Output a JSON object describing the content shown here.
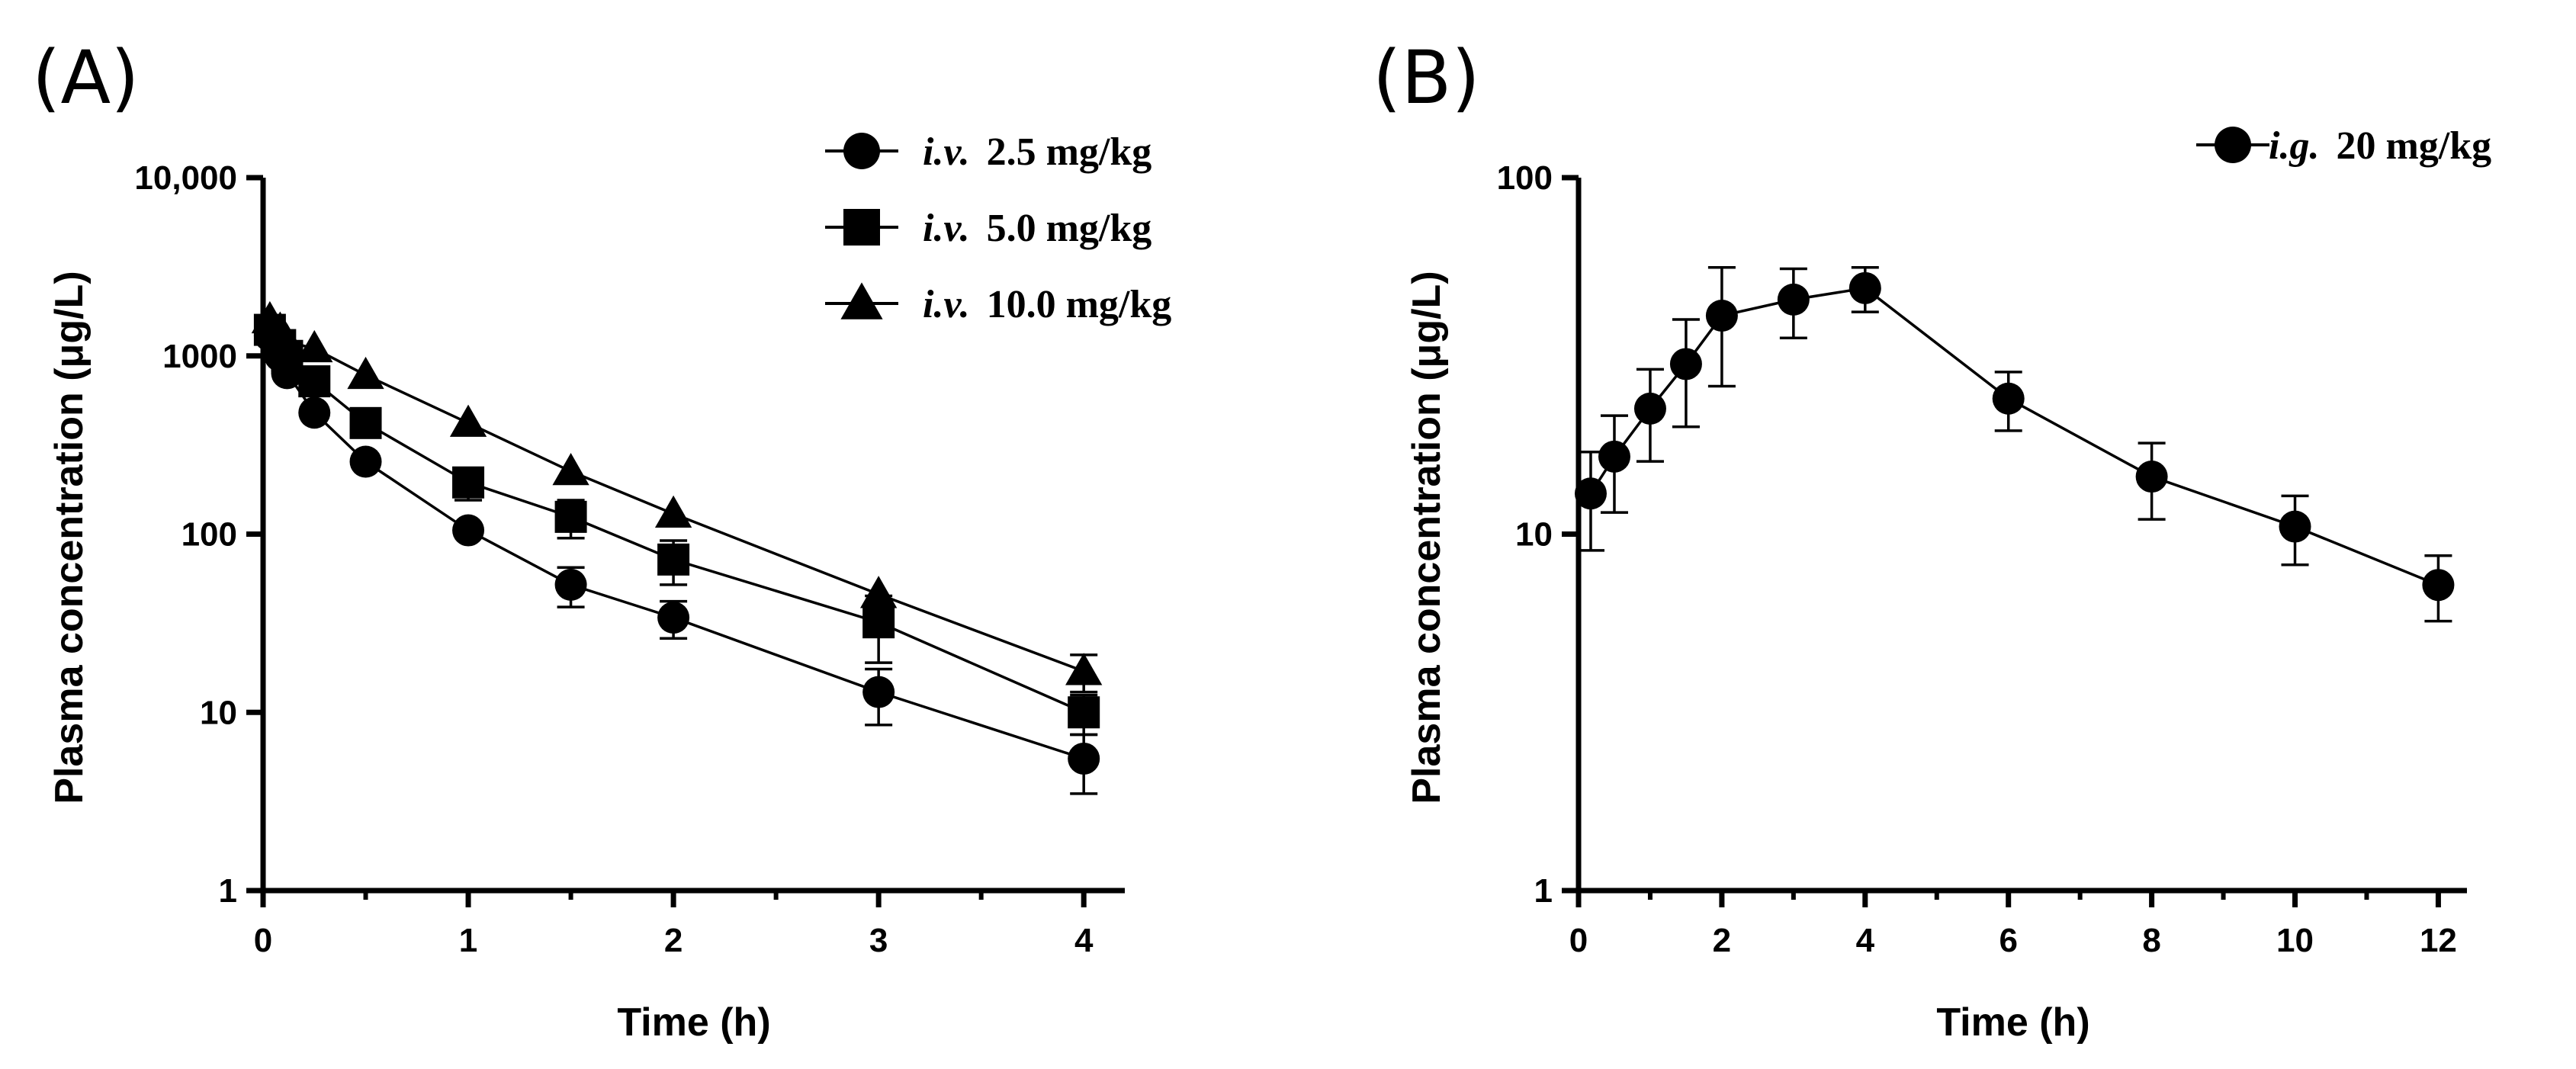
{
  "chart_data": [
    {
      "panel_label": "(A)",
      "type": "line",
      "yscale": "log",
      "xlabel": "Time (h)",
      "ylabel": "Plasma concentration (μg/L)",
      "xlim": [
        0,
        4.2
      ],
      "ylim": [
        1,
        10000
      ],
      "xticks": [
        0,
        1,
        2,
        3,
        4
      ],
      "xtick_labels": [
        "0",
        "1",
        "2",
        "3",
        "4"
      ],
      "yticks": [
        1,
        10,
        100,
        1000,
        10000
      ],
      "ytick_labels": [
        "1",
        "10",
        "100",
        "1000",
        "10,000"
      ],
      "legend_position": "top-right",
      "series": [
        {
          "name": "i.v. 2.5 mg/kg",
          "legend_italic": "i.v.",
          "legend_rest": "2.5  mg/kg",
          "marker": "circle",
          "x": [
            0.033,
            0.083,
            0.117,
            0.25,
            0.5,
            1,
            1.5,
            2,
            3,
            4
          ],
          "y": [
            1300,
            1000,
            800,
            480,
            255,
            105,
            52,
            34,
            13,
            5.5
          ],
          "err": [
            0,
            0,
            0,
            0,
            0,
            0,
            13,
            8,
            4.5,
            2
          ]
        },
        {
          "name": "i.v. 5.0 mg/kg",
          "legend_italic": "i.v.",
          "legend_rest": "5.0  mg/kg",
          "marker": "square",
          "x": [
            0.033,
            0.083,
            0.117,
            0.25,
            0.5,
            1,
            1.5,
            2,
            3,
            4
          ],
          "y": [
            1400,
            1150,
            1000,
            720,
            420,
            195,
            125,
            72,
            32,
            10
          ],
          "err": [
            0,
            0,
            0,
            0,
            0,
            40,
            30,
            20,
            13,
            2.5
          ]
        },
        {
          "name": "i.v. 10.0 mg/kg",
          "legend_italic": "i.v.",
          "legend_rest": "10.0 mg/kg",
          "marker": "triangle",
          "x": [
            0.033,
            0.083,
            0.117,
            0.25,
            0.5,
            1,
            1.5,
            2,
            3,
            4
          ],
          "y": [
            1600,
            1400,
            1200,
            1100,
            780,
            420,
            225,
            130,
            46,
            17
          ],
          "err": [
            0,
            0,
            0,
            0,
            0,
            0,
            0,
            0,
            0,
            4
          ]
        }
      ]
    },
    {
      "panel_label": "(B)",
      "type": "line",
      "yscale": "log",
      "xlabel": "Time (h)",
      "ylabel": "Plasma concentration (μg/L)",
      "xlim": [
        0,
        12.4
      ],
      "ylim": [
        1,
        100
      ],
      "xticks": [
        0,
        2,
        4,
        6,
        8,
        10,
        12
      ],
      "xtick_labels": [
        "0",
        "2",
        "4",
        "6",
        "8",
        "10",
        "12"
      ],
      "yticks": [
        1,
        10,
        100
      ],
      "ytick_labels": [
        "1",
        "10",
        "100"
      ],
      "legend_position": "top-right",
      "series": [
        {
          "name": "i.g. 20 mg/kg",
          "legend_italic": "i.g.",
          "legend_rest": "20 mg/kg",
          "marker": "circle",
          "x": [
            0.17,
            0.5,
            1,
            1.5,
            2,
            3,
            4,
            6,
            8,
            10,
            12
          ],
          "y": [
            13,
            16.5,
            22.5,
            30,
            41,
            45.5,
            49,
            24,
            14.5,
            10.5,
            7.2
          ],
          "err": [
            4,
            5,
            6.5,
            10,
            15,
            10,
            7,
            4.5,
            3.5,
            2.3,
            1.5
          ]
        }
      ]
    }
  ]
}
